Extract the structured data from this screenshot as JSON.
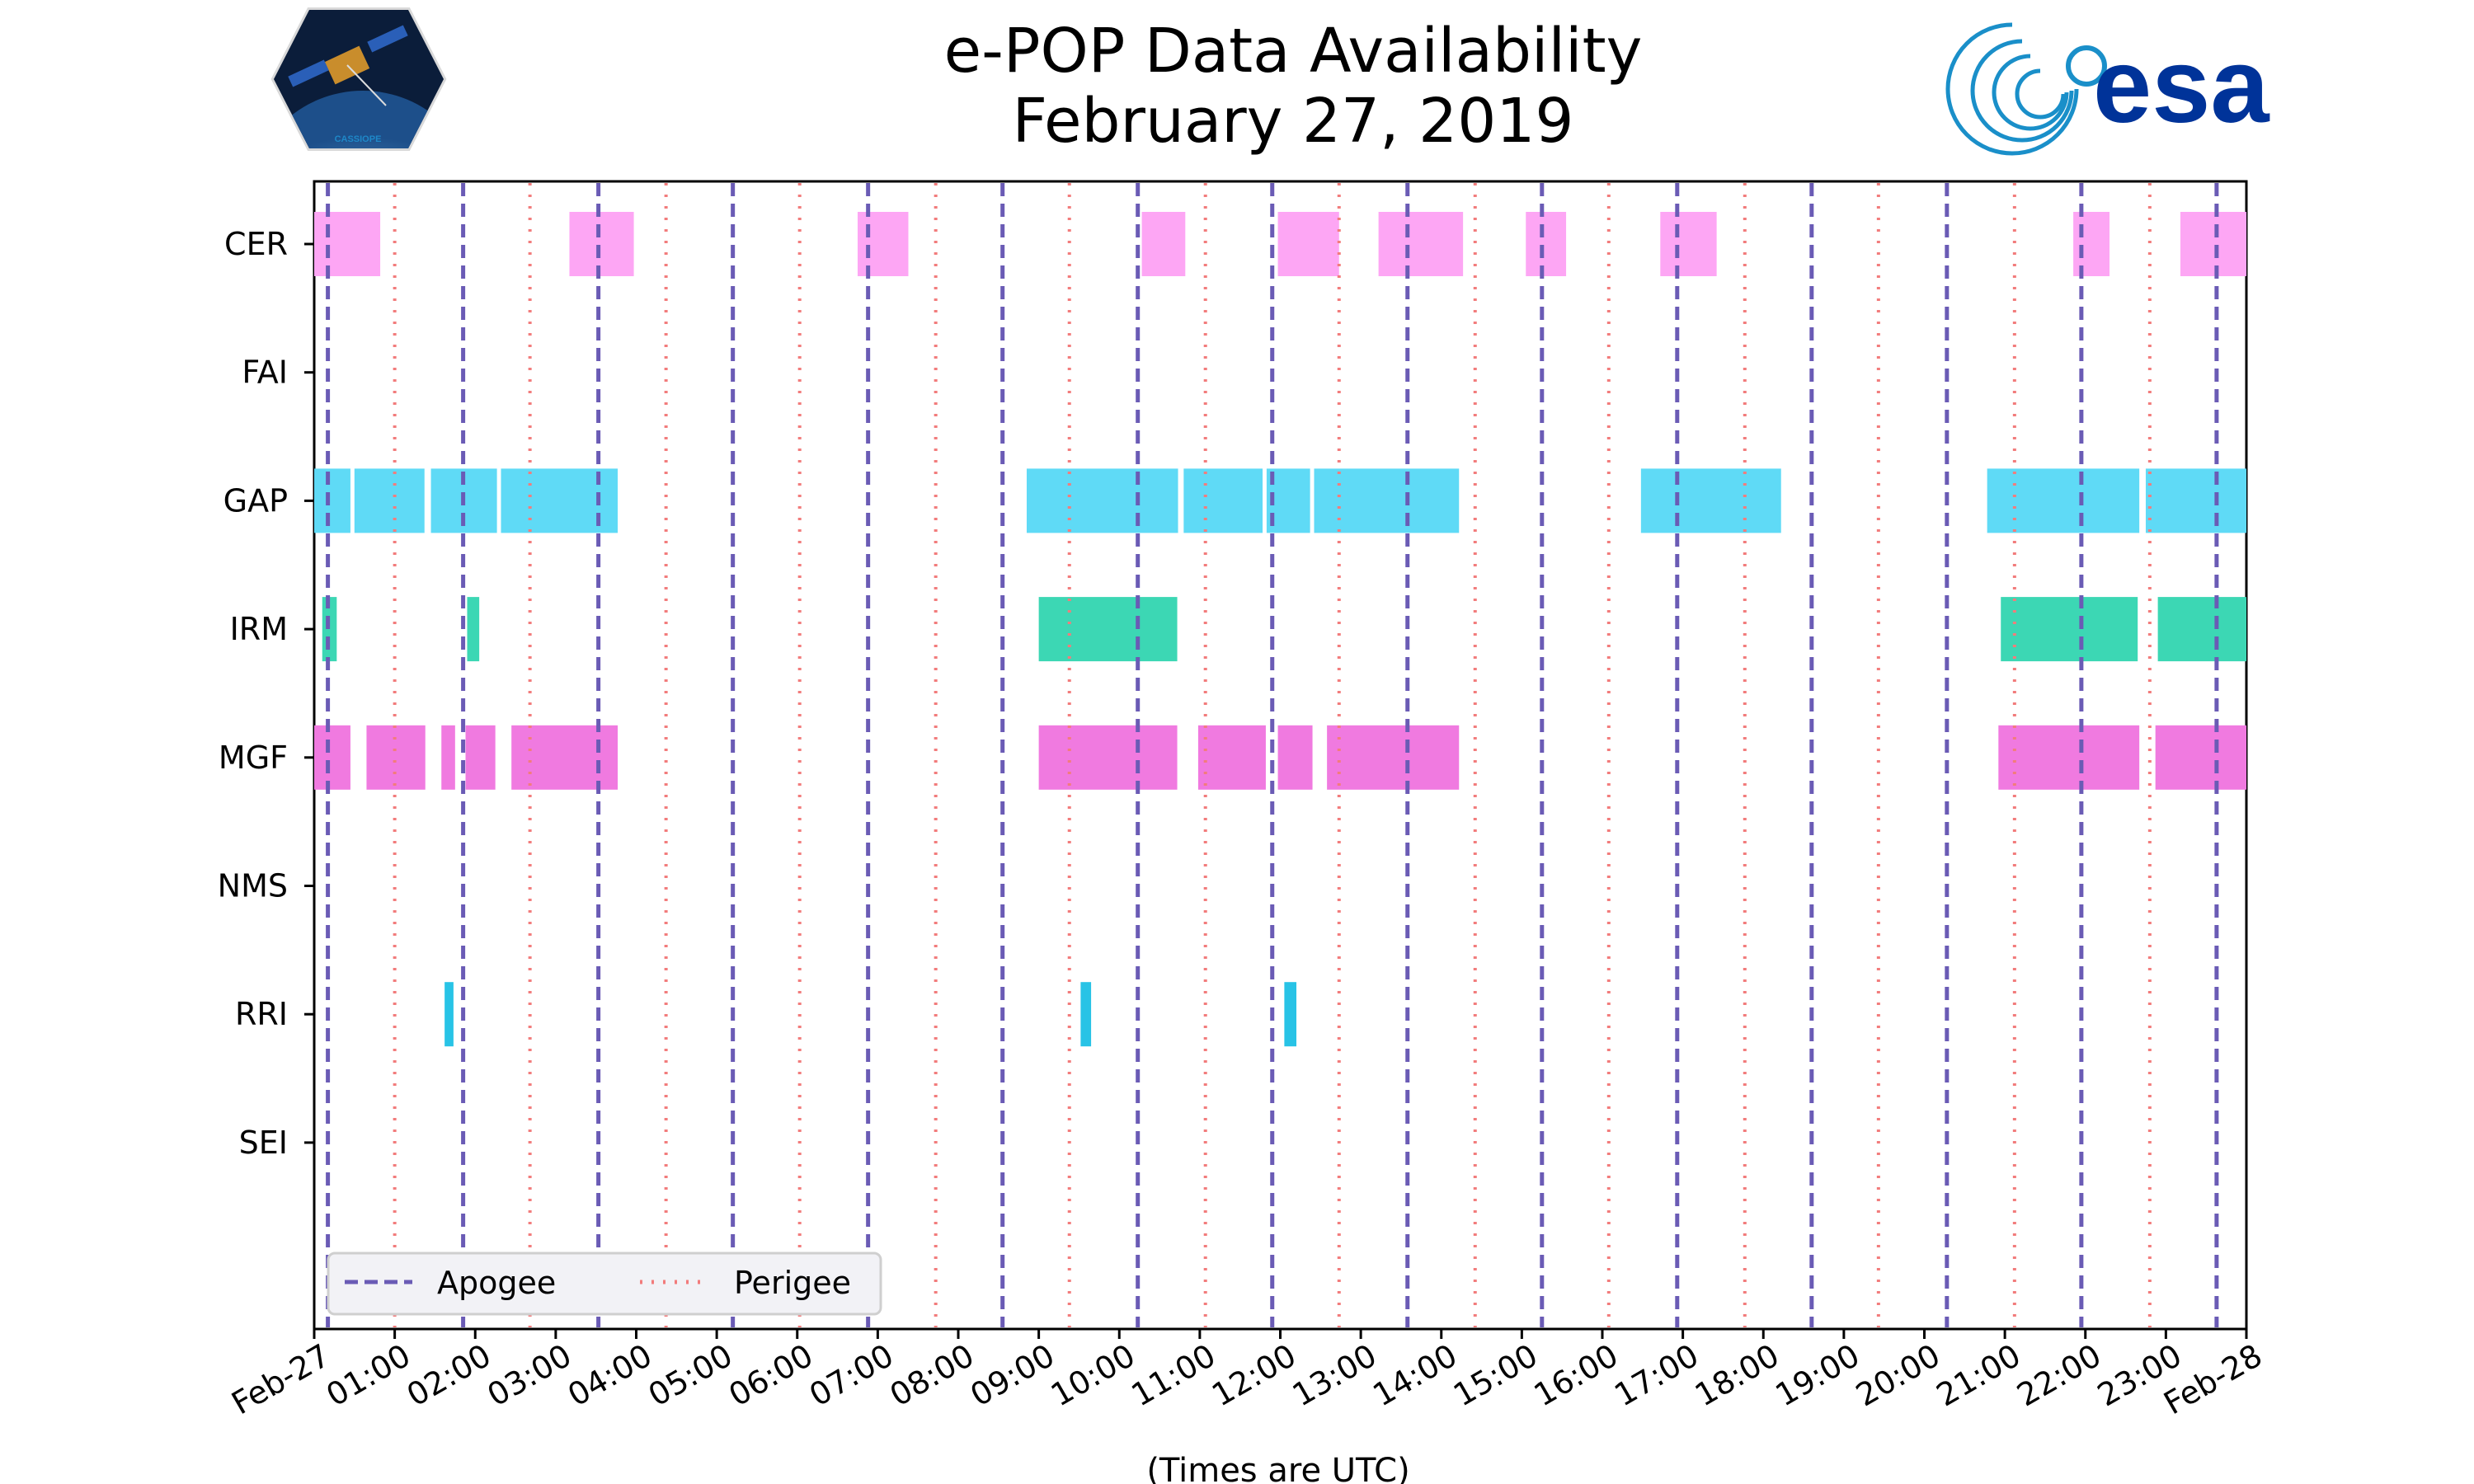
{
  "header": {
    "title_line1": "e-POP Data Availability",
    "title_line2": "February 27, 2019",
    "left_logo_label": "CASSIOPE",
    "right_logo_label": "esa"
  },
  "chart_data": {
    "type": "timeline",
    "title": "e-POP Data Availability February 27, 2019",
    "xlabel": "(Times are UTC)",
    "x_unit": "hours UTC",
    "xlim": [
      0,
      24
    ],
    "x_ticks": [
      {
        "value": 0,
        "label": "Feb-27"
      },
      {
        "value": 1,
        "label": "01:00"
      },
      {
        "value": 2,
        "label": "02:00"
      },
      {
        "value": 3,
        "label": "03:00"
      },
      {
        "value": 4,
        "label": "04:00"
      },
      {
        "value": 5,
        "label": "05:00"
      },
      {
        "value": 6,
        "label": "06:00"
      },
      {
        "value": 7,
        "label": "07:00"
      },
      {
        "value": 8,
        "label": "08:00"
      },
      {
        "value": 9,
        "label": "09:00"
      },
      {
        "value": 10,
        "label": "10:00"
      },
      {
        "value": 11,
        "label": "11:00"
      },
      {
        "value": 12,
        "label": "12:00"
      },
      {
        "value": 13,
        "label": "13:00"
      },
      {
        "value": 14,
        "label": "14:00"
      },
      {
        "value": 15,
        "label": "15:00"
      },
      {
        "value": 16,
        "label": "16:00"
      },
      {
        "value": 17,
        "label": "17:00"
      },
      {
        "value": 18,
        "label": "18:00"
      },
      {
        "value": 19,
        "label": "19:00"
      },
      {
        "value": 20,
        "label": "20:00"
      },
      {
        "value": 21,
        "label": "21:00"
      },
      {
        "value": 22,
        "label": "22:00"
      },
      {
        "value": 23,
        "label": "23:00"
      },
      {
        "value": 24,
        "label": "Feb-28"
      }
    ],
    "instruments": [
      {
        "name": "CER",
        "color": "#fda6f4",
        "segments": [
          [
            0,
            0.82
          ],
          [
            3.17,
            3.97
          ],
          [
            6.75,
            7.38
          ],
          [
            10.28,
            10.82
          ],
          [
            11.97,
            12.73
          ],
          [
            13.22,
            14.27
          ],
          [
            15.05,
            15.55
          ],
          [
            16.72,
            17.42
          ],
          [
            21.85,
            22.3
          ],
          [
            23.18,
            24
          ]
        ]
      },
      {
        "name": "FAI",
        "color": "#cccccc",
        "segments": []
      },
      {
        "name": "GAP",
        "color": "#5fdaf6",
        "segments": [
          [
            0,
            0.45
          ],
          [
            0.5,
            1.37
          ],
          [
            1.45,
            2.27
          ],
          [
            2.32,
            3.77
          ],
          [
            8.85,
            10.73
          ],
          [
            10.8,
            11.78
          ],
          [
            11.83,
            12.37
          ],
          [
            12.42,
            14.22
          ],
          [
            16.48,
            18.22
          ],
          [
            20.78,
            22.67
          ],
          [
            22.75,
            24
          ]
        ]
      },
      {
        "name": "IRM",
        "color": "#3cd7b4",
        "segments": [
          [
            0.1,
            0.28
          ],
          [
            1.9,
            2.05
          ],
          [
            9.0,
            10.72
          ],
          [
            20.95,
            22.65
          ],
          [
            22.9,
            24
          ]
        ]
      },
      {
        "name": "MGF",
        "color": "#f07ae0",
        "segments": [
          [
            0,
            0.45
          ],
          [
            0.65,
            1.38
          ],
          [
            1.58,
            1.75
          ],
          [
            1.88,
            2.25
          ],
          [
            2.45,
            3.77
          ],
          [
            9.0,
            10.72
          ],
          [
            10.98,
            11.82
          ],
          [
            11.97,
            12.4
          ],
          [
            12.58,
            14.22
          ],
          [
            20.92,
            22.67
          ],
          [
            22.87,
            24
          ]
        ]
      },
      {
        "name": "NMS",
        "color": "#cccccc",
        "segments": []
      },
      {
        "name": "RRI",
        "color": "#28c3e6",
        "segments": [
          [
            1.62,
            1.73
          ],
          [
            9.52,
            9.65
          ],
          [
            12.05,
            12.2
          ]
        ]
      },
      {
        "name": "SEI",
        "color": "#cccccc",
        "segments": []
      }
    ],
    "apogee_times": [
      0.17,
      1.85,
      3.53,
      5.2,
      6.88,
      8.55,
      10.23,
      11.9,
      13.58,
      15.25,
      16.93,
      18.6,
      20.28,
      21.95,
      23.63
    ],
    "perigee_times": [
      1.0,
      2.68,
      4.37,
      6.03,
      7.72,
      9.38,
      11.07,
      12.73,
      14.42,
      16.08,
      17.77,
      19.43,
      21.12,
      22.8
    ],
    "legend": {
      "position": "lower-left",
      "apogee_label": "Apogee",
      "perigee_label": "Perigee",
      "apogee_color": "#6a5bb5",
      "perigee_color": "#f27c7c"
    }
  }
}
